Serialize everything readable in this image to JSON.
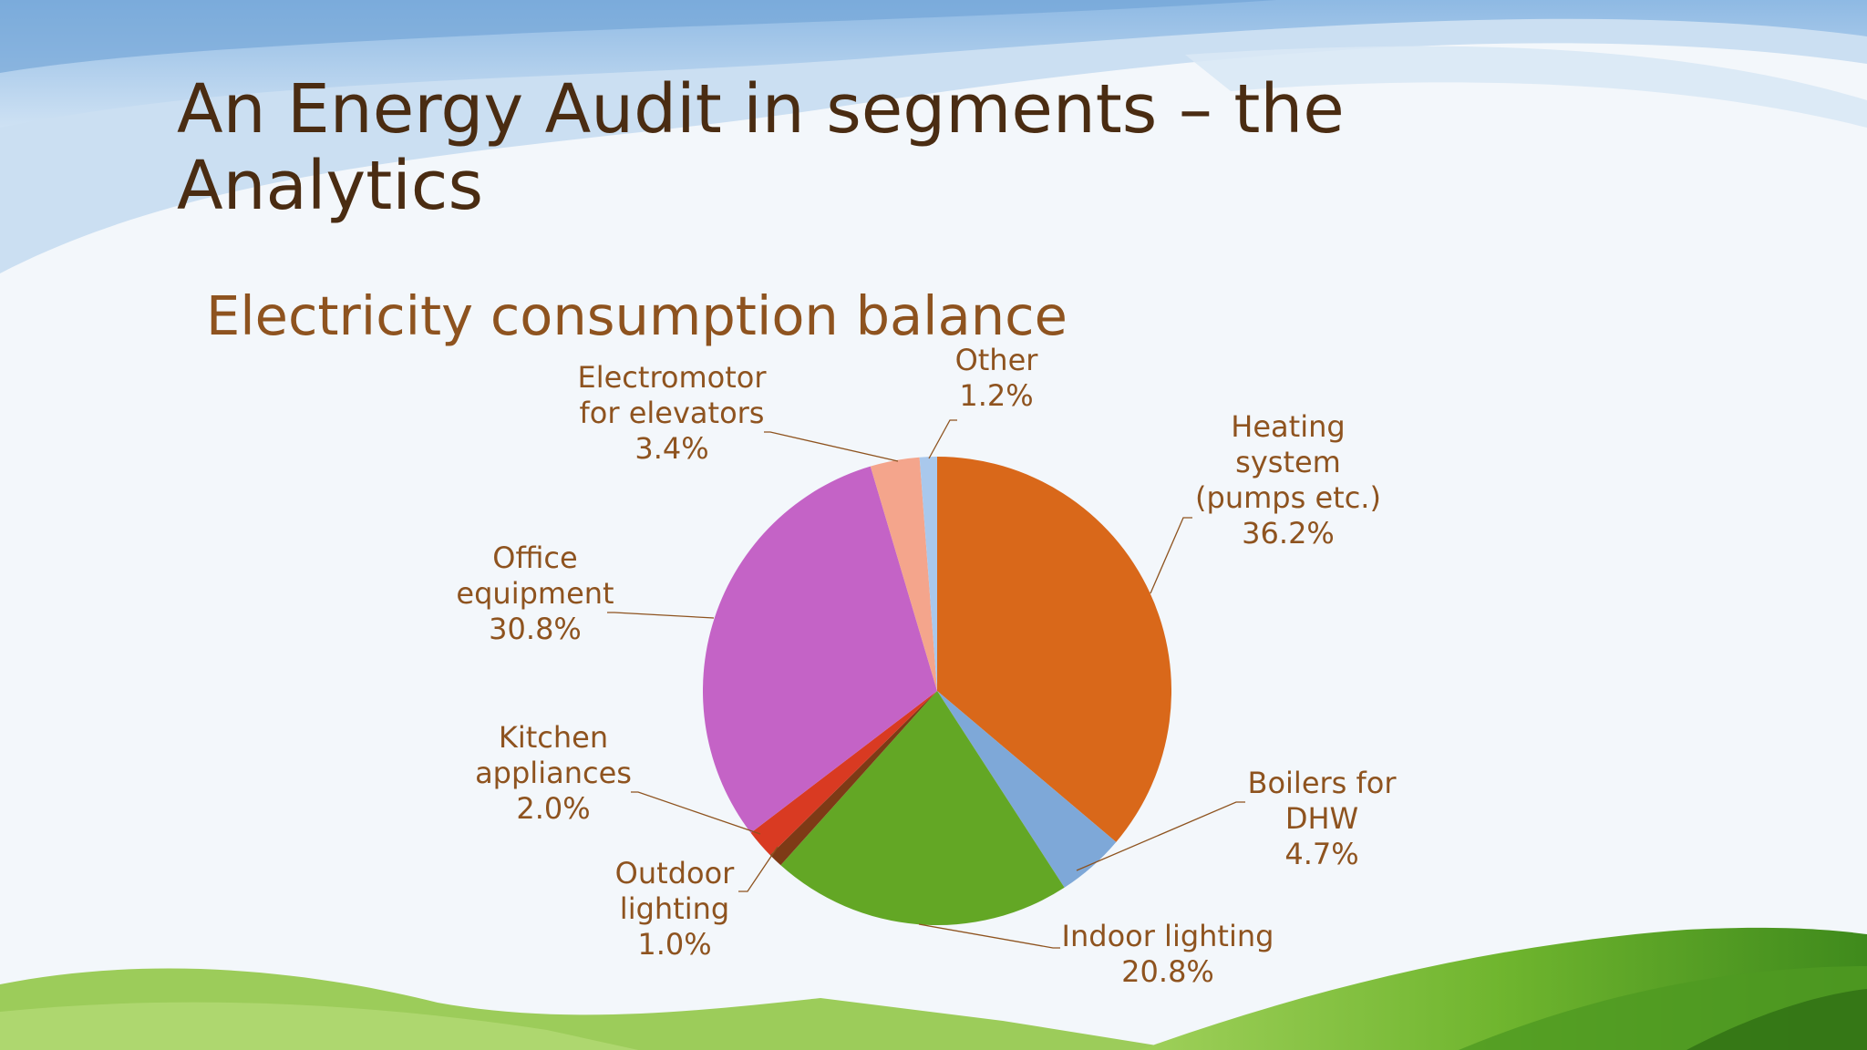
{
  "slide": {
    "title": "An Energy Audit in segments – the Analytics"
  },
  "colors": {
    "title": "#4a2c12",
    "chart_text": "#8e531f",
    "leader_line": "#8e531f"
  },
  "chart_data": {
    "type": "pie",
    "title": "Electricity consumption balance",
    "legend": "none",
    "slices": [
      {
        "label": "Heating system (pumps etc.)",
        "label_lines": [
          "Heating",
          "system",
          "(pumps etc.)"
        ],
        "value": 36.2,
        "display": "36.2%",
        "color": "#d9681a"
      },
      {
        "label": "Boilers for DHW",
        "label_lines": [
          "Boilers for",
          "DHW"
        ],
        "value": 4.7,
        "display": "4.7%",
        "color": "#7ea8d8"
      },
      {
        "label": "Indoor lighting",
        "label_lines": [
          "Indoor lighting"
        ],
        "value": 20.8,
        "display": "20.8%",
        "color": "#63a725"
      },
      {
        "label": "Outdoor lighting",
        "label_lines": [
          "Outdoor",
          "lighting"
        ],
        "value": 1.0,
        "display": "1.0%",
        "color": "#7e3a16"
      },
      {
        "label": "Kitchen appliances",
        "label_lines": [
          "Kitchen",
          "appliances"
        ],
        "value": 2.0,
        "display": "2.0%",
        "color": "#d93a22"
      },
      {
        "label": "Office equipment",
        "label_lines": [
          "Office",
          "equipment"
        ],
        "value": 30.8,
        "display": "30.8%",
        "color": "#c463c6"
      },
      {
        "label": "Electromotor for elevators",
        "label_lines": [
          "Electromotor",
          "for elevators"
        ],
        "value": 3.4,
        "display": "3.4%",
        "color": "#f4a58c"
      },
      {
        "label": "Other",
        "label_lines": [
          "Other"
        ],
        "value": 1.2,
        "display": "1.2%",
        "color": "#a9c8ec"
      }
    ]
  }
}
